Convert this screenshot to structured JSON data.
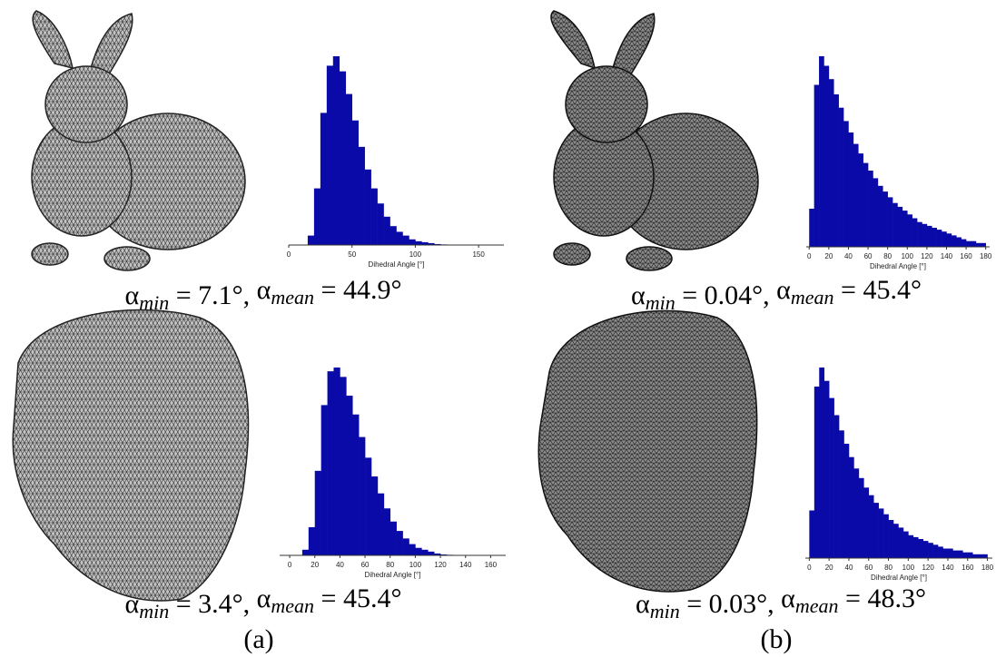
{
  "chart_data": [
    {
      "type": "histogram",
      "xlabel": "Dihedral Angle [°]",
      "color": "#0a0aa8",
      "bins": [
        0,
        5,
        10,
        15,
        20,
        25,
        30,
        35,
        40,
        45,
        50,
        55,
        60,
        65,
        70,
        75,
        80,
        85,
        90,
        95,
        100,
        105,
        110,
        115,
        120,
        125,
        130,
        135,
        140,
        145,
        150,
        155,
        160,
        165,
        170
      ],
      "counts": [
        0,
        0,
        0,
        5,
        30,
        70,
        95,
        100,
        92,
        80,
        66,
        52,
        40,
        30,
        22,
        15,
        10,
        7,
        5,
        3,
        2,
        1.5,
        1,
        0.5,
        0.3,
        0,
        0,
        0,
        0,
        0,
        0,
        0,
        0,
        0
      ],
      "xlim": [
        0,
        170
      ],
      "xticks": [
        0,
        50,
        100,
        150
      ]
    },
    {
      "type": "histogram",
      "xlabel": "Dihedral Angle [°]",
      "color": "#0a0aa8",
      "bins": [
        0,
        5,
        10,
        15,
        20,
        25,
        30,
        35,
        40,
        45,
        50,
        55,
        60,
        65,
        70,
        75,
        80,
        85,
        90,
        95,
        100,
        105,
        110,
        115,
        120,
        125,
        130,
        135,
        140,
        145,
        150,
        155,
        160,
        165,
        170,
        175,
        180
      ],
      "counts": [
        20,
        85,
        100,
        95,
        88,
        80,
        73,
        66,
        60,
        54,
        49,
        44,
        40,
        36,
        32,
        29,
        26,
        23,
        21,
        19,
        17,
        15,
        13,
        12,
        11,
        10,
        9,
        8,
        7,
        6,
        5,
        4,
        3,
        3,
        2,
        2
      ],
      "xlim": [
        -3,
        184
      ],
      "xticks": [
        0,
        20,
        40,
        60,
        80,
        100,
        120,
        140,
        160,
        180
      ]
    },
    {
      "type": "histogram",
      "xlabel": "Dihedral Angle [°]",
      "color": "#0a0aa8",
      "bins": [
        0,
        5,
        10,
        15,
        20,
        25,
        30,
        35,
        40,
        45,
        50,
        55,
        60,
        65,
        70,
        75,
        80,
        85,
        90,
        95,
        100,
        105,
        110,
        115,
        120,
        125,
        130,
        135,
        140,
        145,
        150,
        155,
        160,
        165,
        170
      ],
      "counts": [
        0,
        0,
        3,
        15,
        45,
        80,
        98,
        100,
        95,
        85,
        75,
        63,
        52,
        42,
        33,
        25,
        18,
        13,
        9,
        6,
        4,
        3,
        2,
        1,
        0.5,
        0.3,
        0.2,
        0.1,
        0,
        0,
        0,
        0,
        0,
        0
      ],
      "xlim": [
        -8,
        172
      ],
      "xticks": [
        0,
        20,
        40,
        60,
        80,
        100,
        120,
        140,
        160
      ]
    },
    {
      "type": "histogram",
      "xlabel": "Dihedral Angle [°]",
      "color": "#0a0aa8",
      "bins": [
        0,
        5,
        10,
        15,
        20,
        25,
        30,
        35,
        40,
        45,
        50,
        55,
        60,
        65,
        70,
        75,
        80,
        85,
        90,
        95,
        100,
        105,
        110,
        115,
        120,
        125,
        130,
        135,
        140,
        145,
        150,
        155,
        160,
        165,
        170,
        175,
        180
      ],
      "counts": [
        25,
        90,
        100,
        93,
        84,
        75,
        67,
        60,
        53,
        47,
        42,
        37,
        33,
        29,
        26,
        23,
        20,
        18,
        16,
        14,
        12,
        11,
        10,
        9,
        8,
        7,
        6,
        5,
        5,
        4,
        4,
        3,
        3,
        2,
        2,
        2
      ],
      "xlim": [
        -4,
        185
      ],
      "xticks": [
        0,
        20,
        40,
        60,
        80,
        100,
        120,
        140,
        160,
        180
      ]
    }
  ],
  "captions": [
    [
      "α",
      "min",
      " = 7.1°, ",
      "α",
      "mean",
      " = 44.9°"
    ],
    [
      "α",
      "min",
      " = 0.04°, ",
      "α",
      "mean",
      " = 45.4°"
    ],
    [
      "α",
      "min",
      " = 3.4°, ",
      "α",
      "mean",
      " = 45.4°"
    ],
    [
      "α",
      "min",
      " = 0.03°, ",
      "α",
      "mean",
      " = 48.3°"
    ]
  ],
  "subfigure_labels": [
    "(a)",
    "(b)"
  ]
}
